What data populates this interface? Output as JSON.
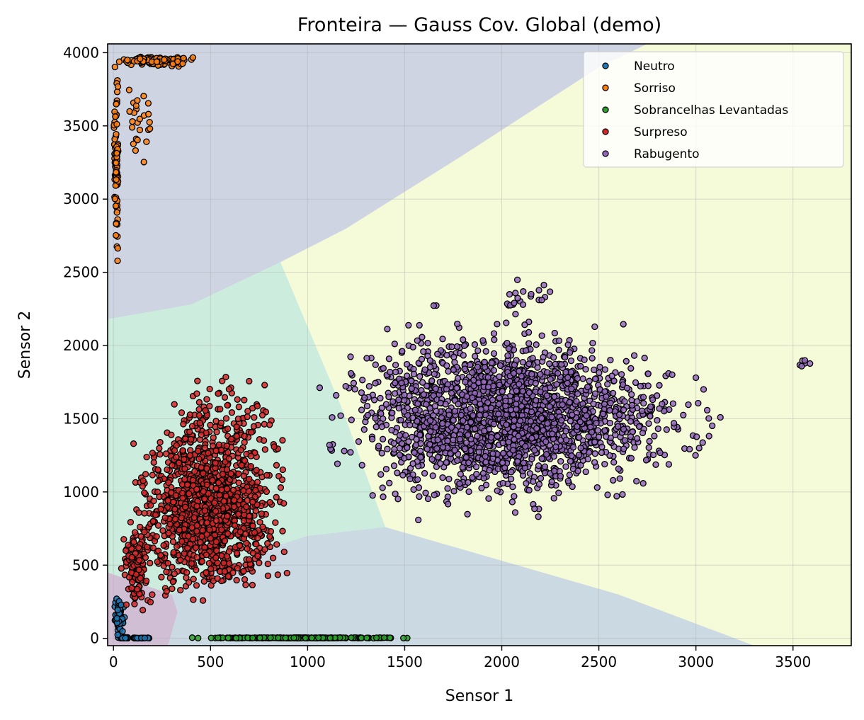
{
  "chart_data": {
    "type": "scatter",
    "title": "Fronteira — Gauss Cov. Global (demo)",
    "xlabel": "Sensor 1",
    "ylabel": "Sensor 2",
    "xlim": [
      -30,
      3800
    ],
    "ylim": [
      -50,
      4060
    ],
    "xticks": [
      0,
      500,
      1000,
      1500,
      2000,
      2500,
      3000,
      3500
    ],
    "yticks": [
      0,
      500,
      1000,
      1500,
      2000,
      2500,
      3000,
      3500,
      4000
    ],
    "grid": true,
    "legend_position": "top-right",
    "regions": [
      {
        "class": "Neutro",
        "color": "#440154",
        "points": [
          [
            -30,
            450
          ],
          [
            300,
            300
          ],
          [
            330,
            180
          ],
          [
            280,
            -50
          ],
          [
            -30,
            -50
          ]
        ]
      },
      {
        "class": "Sobrancelhas Levantadas",
        "color": "#31688e",
        "points": [
          [
            280,
            -50
          ],
          [
            330,
            180
          ],
          [
            300,
            300
          ],
          [
            500,
            450
          ],
          [
            700,
            550
          ],
          [
            860,
            640
          ],
          [
            1000,
            700
          ],
          [
            1400,
            760
          ],
          [
            2600,
            300
          ],
          [
            3300,
            -50
          ]
        ]
      },
      {
        "class": "Surpreso",
        "color": "#35b779",
        "points": [
          [
            -30,
            2180
          ],
          [
            400,
            2280
          ],
          [
            860,
            2570
          ],
          [
            1180,
            1560
          ],
          [
            1400,
            760
          ],
          [
            1000,
            700
          ],
          [
            860,
            640
          ],
          [
            700,
            550
          ],
          [
            500,
            450
          ],
          [
            300,
            300
          ],
          [
            -30,
            450
          ]
        ]
      },
      {
        "class": "Sorriso",
        "color": "#3b528b",
        "points": [
          [
            -30,
            4060
          ],
          [
            2750,
            4060
          ],
          [
            2500,
            3900
          ],
          [
            1800,
            3300
          ],
          [
            1200,
            2800
          ],
          [
            860,
            2570
          ],
          [
            400,
            2280
          ],
          [
            -30,
            2180
          ]
        ]
      },
      {
        "class": "Rabugento",
        "color": "#d9ec69",
        "points": [
          [
            2750,
            4060
          ],
          [
            3800,
            4060
          ],
          [
            3800,
            -50
          ],
          [
            3300,
            -50
          ],
          [
            2600,
            300
          ],
          [
            1400,
            760
          ],
          [
            1180,
            1560
          ],
          [
            860,
            2570
          ],
          [
            1200,
            2800
          ],
          [
            1800,
            3300
          ],
          [
            2500,
            3900
          ]
        ]
      }
    ],
    "series": [
      {
        "name": "Neutro",
        "color": "#1f77b4",
        "clusters": [
          {
            "x": [
              10,
              90
            ],
            "y": [
              0,
              8
            ],
            "n": 60
          },
          {
            "x": [
              0,
              60
            ],
            "y": [
              0,
              300
            ],
            "n": 70
          },
          {
            "x": [
              60,
              200
            ],
            "y": [
              0,
              5
            ],
            "n": 25
          }
        ]
      },
      {
        "name": "Sorriso",
        "color": "#ff7f0e",
        "clusters": [
          {
            "x": [
              0,
              450
            ],
            "y": [
              3900,
              3990
            ],
            "n": 130
          },
          {
            "x": [
              0,
              30
            ],
            "y": [
              2450,
              4010
            ],
            "n": 90
          },
          {
            "x": [
              30,
              230
            ],
            "y": [
              3100,
              3900
            ],
            "n": 25
          }
        ]
      },
      {
        "name": "Sobrancelhas Levantadas",
        "color": "#2ca02c",
        "clusters": [
          {
            "x": [
              300,
              1620
            ],
            "y": [
              0,
              6
            ],
            "n": 240
          }
        ]
      },
      {
        "name": "Surpreso",
        "color": "#d62728",
        "clusters": [
          {
            "x": [
              30,
              950
            ],
            "y": [
              150,
              1600
            ],
            "n": 1200
          },
          {
            "x": [
              200,
              950
            ],
            "y": [
              1000,
              1980
            ],
            "n": 120
          },
          {
            "x": [
              30,
              200
            ],
            "y": [
              100,
              900
            ],
            "n": 120
          }
        ]
      },
      {
        "name": "Rabugento",
        "color": "#9467bd",
        "clusters": [
          {
            "x": [
              980,
              2900
            ],
            "y": [
              750,
              2300
            ],
            "n": 1500
          },
          {
            "x": [
              1300,
              3300
            ],
            "y": [
              1000,
              2000
            ],
            "n": 600
          },
          {
            "x": [
              3300,
              3750
            ],
            "y": [
              1830,
              1940
            ],
            "n": 6
          },
          {
            "x": [
              1800,
              2500
            ],
            "y": [
              2200,
              2480
            ],
            "n": 20
          }
        ]
      }
    ]
  }
}
